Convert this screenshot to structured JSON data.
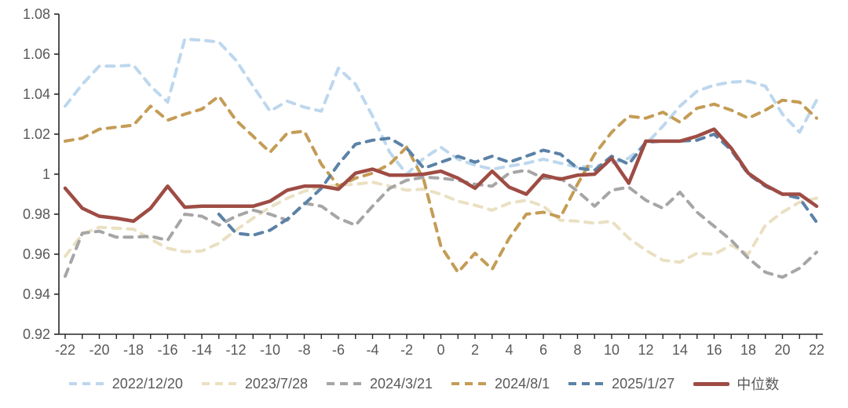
{
  "chart_data": {
    "type": "line",
    "title": "",
    "xlabel": "",
    "ylabel": "",
    "xlim": [
      -22,
      22
    ],
    "ylim": [
      0.92,
      1.08
    ],
    "grid": false,
    "legend_position": "bottom",
    "axis_color": "#262626",
    "tick_label_color": "#595959",
    "x": [
      -22,
      -21,
      -20,
      -19,
      -18,
      -17,
      -16,
      -15,
      -14,
      -13,
      -12,
      -11,
      -10,
      -9,
      -8,
      -7,
      -6,
      -5,
      -4,
      -3,
      -2,
      -1,
      0,
      1,
      2,
      3,
      4,
      5,
      6,
      7,
      8,
      9,
      10,
      11,
      12,
      13,
      14,
      15,
      16,
      17,
      18,
      19,
      20,
      21,
      22
    ],
    "x_tick_labels": [
      "-22",
      "-20",
      "-18",
      "-16",
      "-14",
      "-12",
      "-10",
      "-8",
      "-6",
      "-4",
      "-2",
      "0",
      "2",
      "4",
      "6",
      "8",
      "10",
      "12",
      "14",
      "16",
      "18",
      "20",
      "22"
    ],
    "y_ticks": [
      0.92,
      0.94,
      0.96,
      0.98,
      1.0,
      1.02,
      1.04,
      1.06,
      1.08
    ],
    "y_tick_labels": [
      "0.92",
      "0.94",
      "0.96",
      "0.98",
      "1",
      "1.02",
      "1.04",
      "1.06",
      "1.08"
    ],
    "series": [
      {
        "name": "2022/12/20",
        "color": "#BDD7EE",
        "style": "dashed",
        "values": [
          1.034,
          1.045,
          1.054,
          1.054,
          1.0545,
          1.044,
          1.036,
          1.0675,
          1.067,
          1.066,
          1.057,
          1.044,
          1.0315,
          1.0365,
          1.0335,
          1.0315,
          1.053,
          1.045,
          1.029,
          1.011,
          1.0,
          1.008,
          1.0135,
          1.0075,
          1.0045,
          1.0025,
          1.004,
          1.0055,
          1.0075,
          1.0055,
          1.0035,
          1.004,
          1.0055,
          1.008,
          1.015,
          1.024,
          1.034,
          1.0415,
          1.0445,
          1.046,
          1.0465,
          1.044,
          1.03,
          1.021,
          1.037
        ]
      },
      {
        "name": "2023/7/28",
        "color": "#EAE0C2",
        "style": "dashed",
        "values": [
          0.959,
          0.97,
          0.9735,
          0.973,
          0.9725,
          0.9675,
          0.963,
          0.9612,
          0.9616,
          0.9655,
          0.972,
          0.978,
          0.9835,
          0.988,
          0.9915,
          0.9935,
          0.9945,
          0.995,
          0.996,
          0.994,
          0.992,
          0.9925,
          0.99,
          0.9865,
          0.9845,
          0.982,
          0.9855,
          0.987,
          0.984,
          0.977,
          0.9765,
          0.9755,
          0.9765,
          0.968,
          0.962,
          0.957,
          0.956,
          0.9605,
          0.96,
          0.9645,
          0.96,
          0.9745,
          0.981,
          0.986,
          0.988
        ]
      },
      {
        "name": "2024/3/21",
        "color": "#A6A6A6",
        "style": "dashed",
        "values": [
          0.949,
          0.9705,
          0.9715,
          0.9685,
          0.9685,
          0.969,
          0.967,
          0.98,
          0.979,
          0.9745,
          0.979,
          0.982,
          0.98,
          0.977,
          0.9855,
          0.984,
          0.978,
          0.9745,
          0.984,
          0.993,
          0.997,
          0.9985,
          0.998,
          0.997,
          0.995,
          0.994,
          1.0005,
          1.002,
          0.998,
          0.998,
          0.9915,
          0.984,
          0.992,
          0.9935,
          0.987,
          0.983,
          0.991,
          0.981,
          0.974,
          0.967,
          0.958,
          0.951,
          0.9485,
          0.953,
          0.961
        ]
      },
      {
        "name": "2024/8/1",
        "color": "#C49C55",
        "style": "dashed",
        "values": [
          1.0165,
          1.018,
          1.0225,
          1.0235,
          1.0245,
          1.034,
          1.027,
          1.03,
          1.0325,
          1.039,
          1.027,
          1.019,
          1.011,
          1.0205,
          1.0215,
          1.005,
          0.994,
          0.998,
          1.0005,
          1.005,
          1.0135,
          0.997,
          0.964,
          0.951,
          0.9605,
          0.9525,
          0.968,
          0.98,
          0.981,
          0.9785,
          0.995,
          1.01,
          1.021,
          1.029,
          1.028,
          1.031,
          1.026,
          1.033,
          1.035,
          1.032,
          1.028,
          1.032,
          1.037,
          1.036,
          1.028
        ]
      },
      {
        "name": "2025/1/27",
        "color": "#5B82A7",
        "style": "dashed",
        "values": [
          null,
          null,
          null,
          null,
          null,
          null,
          null,
          null,
          null,
          0.98,
          0.9705,
          0.9695,
          0.972,
          0.9775,
          0.985,
          0.993,
          1.005,
          1.015,
          1.017,
          1.018,
          1.013,
          1.003,
          1.006,
          1.009,
          1.006,
          1.009,
          1.006,
          1.009,
          1.012,
          1.01,
          1.003,
          1.002,
          1.009,
          1.005,
          1.016,
          1.0165,
          1.0165,
          1.017,
          1.02,
          1.012,
          1.0,
          0.994,
          0.99,
          0.988,
          0.976
        ]
      },
      {
        "name": "中位数",
        "color": "#9E4C44",
        "style": "solid",
        "values": [
          0.993,
          0.983,
          0.979,
          0.978,
          0.9765,
          0.983,
          0.994,
          0.9835,
          0.984,
          0.984,
          0.984,
          0.984,
          0.9865,
          0.992,
          0.994,
          0.994,
          0.9925,
          1.0005,
          1.0025,
          0.9995,
          0.9995,
          1.0,
          1.0015,
          0.998,
          0.993,
          1.0015,
          0.9935,
          0.99,
          0.9995,
          0.9975,
          0.9995,
          1.0,
          1.008,
          0.9955,
          1.0165,
          1.0165,
          1.0165,
          1.019,
          1.0225,
          1.013,
          1.0005,
          0.9945,
          0.99,
          0.99,
          0.984
        ]
      }
    ]
  }
}
